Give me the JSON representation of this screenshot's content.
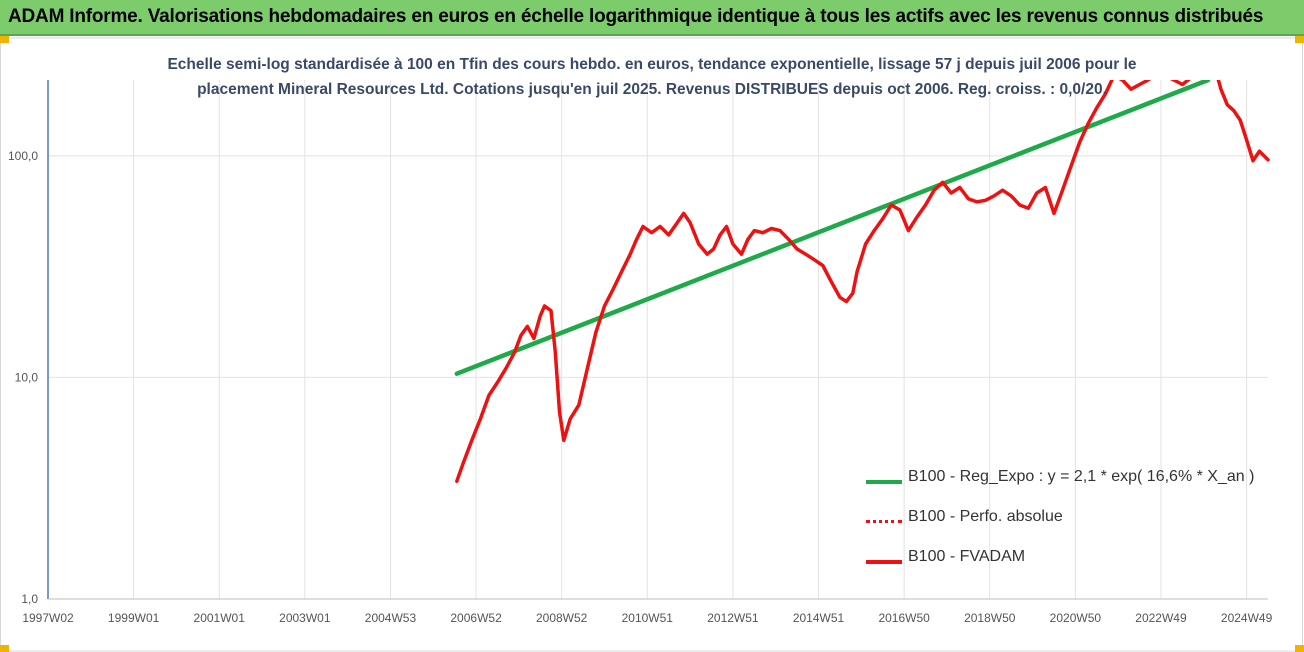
{
  "header": {
    "title": "ADAM Informe. Valorisations hebdomadaires en euros en échelle logarithmique identique à tous les actifs avec les revenus connus distribués"
  },
  "colors": {
    "banner": "#7ccc6c",
    "regression": "#1faa4a",
    "fvadam": "#ee1111",
    "perfo": "#ee1111",
    "subtitle": "#3a4a66"
  },
  "chart_data": {
    "type": "line",
    "subtitle_line1": "Echelle semi-log standardisée à 100 en Tfin des cours hebdo. en euros, tendance exponentielle, lissage 57 j depuis juil 2006 pour le",
    "subtitle_line2": "placement Mineral Resources Ltd. Cotations jusqu'en juil 2025.  Revenus DISTRIBUES depuis oct 2006. Reg. croiss. : 0,0/20.",
    "y_scale": "log",
    "ylim": [
      1,
      220
    ],
    "y_ticks": [
      1,
      10,
      100
    ],
    "y_tick_labels": [
      "1,0",
      "10,0",
      "100,0"
    ],
    "x_tick_labels": [
      "1997W02",
      "1999W01",
      "2001W01",
      "2003W01",
      "2004W53",
      "2006W52",
      "2008W52",
      "2010W51",
      "2012W51",
      "2014W51",
      "2016W50",
      "2018W50",
      "2020W50",
      "2022W49",
      "2024W49"
    ],
    "x_tick_years": [
      1997.0,
      1999.0,
      2001.0,
      2003.0,
      2005.0,
      2007.0,
      2009.0,
      2011.0,
      2013.0,
      2015.0,
      2017.0,
      2019.0,
      2021.0,
      2023.0,
      2025.0
    ],
    "xlim": [
      1997.0,
      2025.5
    ],
    "grid": "vertical",
    "legend_position": "bottom-right",
    "series": [
      {
        "name": "B100 - Reg_Expo : y = 2,1 * exp( 16,6% *  X_an )",
        "style": "line",
        "x": [
          2006.55,
          2024.1
        ],
        "y": [
          10.4,
          220
        ]
      },
      {
        "name": "B100 - Perfo. absolue",
        "style": "dotted",
        "x": [],
        "y": []
      },
      {
        "name": "B100 - FVADAM",
        "style": "line",
        "x": [
          2006.55,
          2006.7,
          2006.9,
          2007.1,
          2007.3,
          2007.5,
          2007.7,
          2007.9,
          2008.05,
          2008.2,
          2008.35,
          2008.5,
          2008.6,
          2008.75,
          2008.85,
          2008.95,
          2009.05,
          2009.2,
          2009.4,
          2009.6,
          2009.8,
          2010.0,
          2010.2,
          2010.4,
          2010.6,
          2010.75,
          2010.9,
          2011.1,
          2011.3,
          2011.5,
          2011.7,
          2011.85,
          2012.0,
          2012.2,
          2012.4,
          2012.55,
          2012.7,
          2012.85,
          2013.0,
          2013.2,
          2013.35,
          2013.5,
          2013.7,
          2013.9,
          2014.1,
          2014.3,
          2014.5,
          2014.7,
          2014.9,
          2015.1,
          2015.3,
          2015.5,
          2015.65,
          2015.8,
          2015.9,
          2016.1,
          2016.3,
          2016.5,
          2016.7,
          2016.9,
          2017.1,
          2017.3,
          2017.5,
          2017.7,
          2017.9,
          2018.1,
          2018.3,
          2018.5,
          2018.7,
          2018.9,
          2019.1,
          2019.3,
          2019.5,
          2019.7,
          2019.9,
          2020.1,
          2020.3,
          2020.5,
          2020.7,
          2020.9,
          2021.1,
          2021.3,
          2021.5,
          2021.7,
          2021.9,
          2022.1,
          2022.3,
          2022.5,
          2022.7,
          2022.9,
          2023.1,
          2023.3,
          2023.5,
          2023.7,
          2023.9,
          2024.1,
          2024.25,
          2024.4,
          2024.55,
          2024.7,
          2024.85,
          2025.0,
          2025.15,
          2025.3,
          2025.5
        ],
        "y": [
          3.4,
          4.1,
          5.2,
          6.5,
          8.3,
          9.5,
          11.0,
          13.0,
          15.5,
          17.0,
          15.0,
          19.0,
          21.0,
          20.0,
          13.0,
          7.0,
          5.2,
          6.5,
          7.5,
          11.0,
          16.0,
          21.0,
          25.0,
          30.0,
          36.0,
          42.0,
          48.0,
          45.0,
          48.0,
          44.0,
          50.0,
          55.0,
          50.0,
          40.0,
          36.0,
          38.0,
          44.0,
          48.0,
          40.0,
          36.0,
          42.0,
          46.0,
          45.0,
          47.0,
          46.0,
          42.0,
          38.0,
          36.0,
          34.0,
          32.0,
          27.0,
          23.0,
          22.0,
          24.0,
          30.0,
          40.0,
          46.0,
          52.0,
          60.0,
          57.0,
          46.0,
          53.0,
          60.0,
          70.0,
          76.0,
          68.0,
          72.0,
          64.0,
          62.0,
          63.0,
          66.0,
          70.0,
          66.0,
          60.0,
          58.0,
          68.0,
          72.0,
          55.0,
          70.0,
          90.0,
          115.0,
          140.0,
          165.0,
          190.0,
          230.0,
          220.0,
          200.0,
          210.0,
          220.0,
          235.0,
          230.0,
          220.0,
          210.0,
          225.0,
          240.0,
          235.0,
          255.0,
          200.0,
          170.0,
          160.0,
          145.0,
          118.0,
          95.0,
          105.0,
          96.0
        ]
      }
    ]
  }
}
